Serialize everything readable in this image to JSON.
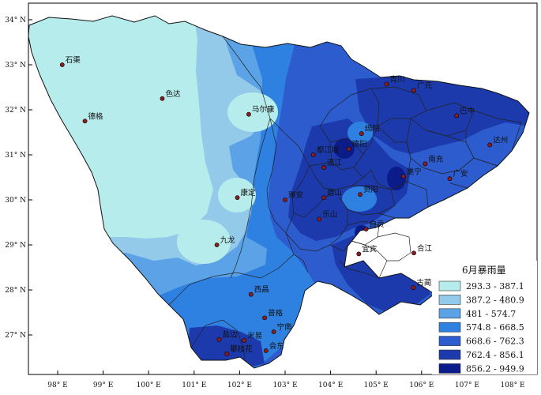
{
  "map": {
    "lon_ticks": [
      "98° E",
      "99° E",
      "100° E",
      "101° E",
      "102° E",
      "103° E",
      "104° E",
      "105° E",
      "106° E",
      "107° E",
      "108° E"
    ],
    "lat_ticks": [
      "34° N",
      "33° N",
      "32° N",
      "31° N",
      "30° N",
      "29° N",
      "28° N",
      "27° N"
    ],
    "cities": [
      {
        "name": "石渠",
        "lon": 98.1,
        "lat": 33.0
      },
      {
        "name": "色达",
        "lon": 100.3,
        "lat": 32.25
      },
      {
        "name": "德格",
        "lon": 98.6,
        "lat": 31.75
      },
      {
        "name": "马尔康",
        "lon": 102.2,
        "lat": 31.9
      },
      {
        "name": "康定",
        "lon": 101.95,
        "lat": 30.05
      },
      {
        "name": "九龙",
        "lon": 101.5,
        "lat": 29.0
      },
      {
        "name": "西昌",
        "lon": 102.25,
        "lat": 27.9
      },
      {
        "name": "普格",
        "lon": 102.55,
        "lat": 27.38
      },
      {
        "name": "宁南",
        "lon": 102.75,
        "lat": 27.07
      },
      {
        "name": "会东",
        "lon": 102.58,
        "lat": 26.65
      },
      {
        "name": "米易",
        "lon": 102.1,
        "lat": 26.88
      },
      {
        "name": "盐边",
        "lon": 101.55,
        "lat": 26.9
      },
      {
        "name": "攀枝花",
        "lon": 101.72,
        "lat": 26.58
      },
      {
        "name": "雅安",
        "lon": 103.0,
        "lat": 30.0
      },
      {
        "name": "乐山",
        "lon": 103.75,
        "lat": 29.57
      },
      {
        "name": "眉山",
        "lon": 103.85,
        "lat": 30.05
      },
      {
        "name": "温江",
        "lon": 103.85,
        "lat": 30.72
      },
      {
        "name": "都江堰",
        "lon": 103.62,
        "lat": 31.0
      },
      {
        "name": "绵阳",
        "lon": 104.68,
        "lat": 31.47
      },
      {
        "name": "德阳",
        "lon": 104.4,
        "lat": 31.13
      },
      {
        "name": "资阳",
        "lon": 104.65,
        "lat": 30.12
      },
      {
        "name": "宜宾",
        "lon": 104.62,
        "lat": 28.8
      },
      {
        "name": "自贡",
        "lon": 104.78,
        "lat": 29.35
      },
      {
        "name": "遂宁",
        "lon": 105.6,
        "lat": 30.52
      },
      {
        "name": "南充",
        "lon": 106.08,
        "lat": 30.8
      },
      {
        "name": "广安",
        "lon": 106.62,
        "lat": 30.47
      },
      {
        "name": "达州",
        "lon": 107.5,
        "lat": 31.22
      },
      {
        "name": "巴中",
        "lon": 106.77,
        "lat": 31.87
      },
      {
        "name": "广元",
        "lon": 105.83,
        "lat": 32.43
      },
      {
        "name": "青川",
        "lon": 105.23,
        "lat": 32.57
      },
      {
        "name": "合江",
        "lon": 105.83,
        "lat": 28.82
      },
      {
        "name": "古蔺",
        "lon": 105.82,
        "lat": 28.05
      }
    ]
  },
  "legend": {
    "title": "6月暴雨量",
    "classes": [
      {
        "label": "293.3 - 387.1",
        "color": "#b7ecec"
      },
      {
        "label": "387.2 - 480.9",
        "color": "#93caea"
      },
      {
        "label": "481 - 574.7",
        "color": "#5ba3e6"
      },
      {
        "label": "574.8 - 668.5",
        "color": "#2f81e1"
      },
      {
        "label": "668.6 - 762.3",
        "color": "#2d5cce"
      },
      {
        "label": "762.4 - 856.1",
        "color": "#1c3aab"
      },
      {
        "label": "856.2 - 949.9",
        "color": "#0b1c8a"
      }
    ]
  },
  "colors": {
    "frame": "#000000",
    "boundary": "#222222",
    "city_marker": "#8b1d1d"
  }
}
